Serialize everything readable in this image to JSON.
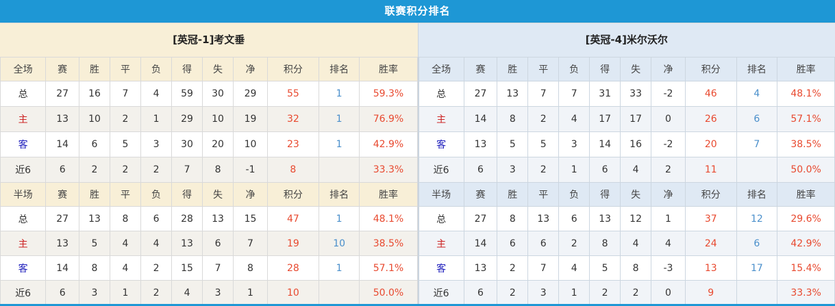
{
  "header": {
    "title": "联赛积分排名"
  },
  "columns": [
    "全场",
    "赛",
    "胜",
    "平",
    "负",
    "得",
    "失",
    "净",
    "积分",
    "排名",
    "胜率"
  ],
  "half_label": "半场",
  "colors": {
    "topbar_blue": "#1e97d5",
    "left_theme": "#f8efd7",
    "right_theme": "#dfe9f4",
    "points_red": "#e8492f",
    "rank_blue": "#4a8fcb",
    "home_label_red": "#cc2222",
    "away_label_blue": "#2121bd"
  },
  "teams": [
    {
      "title": "[英冠-1]考文垂",
      "full": [
        {
          "label": "总",
          "cells": [
            "27",
            "16",
            "7",
            "4",
            "59",
            "30",
            "29",
            "55",
            "1",
            "59.3%"
          ]
        },
        {
          "label": "主",
          "cells": [
            "13",
            "10",
            "2",
            "1",
            "29",
            "10",
            "19",
            "32",
            "1",
            "76.9%"
          ]
        },
        {
          "label": "客",
          "cells": [
            "14",
            "6",
            "5",
            "3",
            "30",
            "20",
            "10",
            "23",
            "1",
            "42.9%"
          ]
        },
        {
          "label": "近6",
          "cells": [
            "6",
            "2",
            "2",
            "2",
            "7",
            "8",
            "-1",
            "8",
            "",
            "33.3%"
          ]
        }
      ],
      "half": [
        {
          "label": "总",
          "cells": [
            "27",
            "13",
            "8",
            "6",
            "28",
            "13",
            "15",
            "47",
            "1",
            "48.1%"
          ]
        },
        {
          "label": "主",
          "cells": [
            "13",
            "5",
            "4",
            "4",
            "13",
            "6",
            "7",
            "19",
            "10",
            "38.5%"
          ]
        },
        {
          "label": "客",
          "cells": [
            "14",
            "8",
            "4",
            "2",
            "15",
            "7",
            "8",
            "28",
            "1",
            "57.1%"
          ]
        },
        {
          "label": "近6",
          "cells": [
            "6",
            "3",
            "1",
            "2",
            "4",
            "3",
            "1",
            "10",
            "",
            "50.0%"
          ]
        }
      ]
    },
    {
      "title": "[英冠-4]米尔沃尔",
      "full": [
        {
          "label": "总",
          "cells": [
            "27",
            "13",
            "7",
            "7",
            "31",
            "33",
            "-2",
            "46",
            "4",
            "48.1%"
          ]
        },
        {
          "label": "主",
          "cells": [
            "14",
            "8",
            "2",
            "4",
            "17",
            "17",
            "0",
            "26",
            "6",
            "57.1%"
          ]
        },
        {
          "label": "客",
          "cells": [
            "13",
            "5",
            "5",
            "3",
            "14",
            "16",
            "-2",
            "20",
            "7",
            "38.5%"
          ]
        },
        {
          "label": "近6",
          "cells": [
            "6",
            "3",
            "2",
            "1",
            "6",
            "4",
            "2",
            "11",
            "",
            "50.0%"
          ]
        }
      ],
      "half": [
        {
          "label": "总",
          "cells": [
            "27",
            "8",
            "13",
            "6",
            "13",
            "12",
            "1",
            "37",
            "12",
            "29.6%"
          ]
        },
        {
          "label": "主",
          "cells": [
            "14",
            "6",
            "6",
            "2",
            "8",
            "4",
            "4",
            "24",
            "6",
            "42.9%"
          ]
        },
        {
          "label": "客",
          "cells": [
            "13",
            "2",
            "7",
            "4",
            "5",
            "8",
            "-3",
            "13",
            "17",
            "15.4%"
          ]
        },
        {
          "label": "近6",
          "cells": [
            "6",
            "2",
            "3",
            "1",
            "2",
            "2",
            "0",
            "9",
            "",
            "33.3%"
          ]
        }
      ]
    }
  ]
}
